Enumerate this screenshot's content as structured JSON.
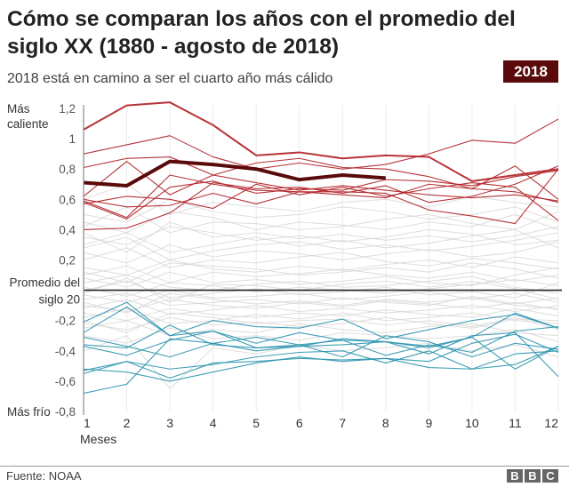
{
  "title": "Cómo se comparan los años con el promedio del siglo XX (1880 - agosto de 2018)",
  "subtitle": "2018 está en camino a ser el cuarto año más cálido",
  "badge": "2018",
  "source": "Fuente: NOAA",
  "logo": [
    "B",
    "B",
    "C"
  ],
  "chart_data": {
    "type": "line",
    "xlabel": "Meses",
    "x": [
      1,
      2,
      3,
      4,
      5,
      6,
      7,
      8,
      9,
      10,
      11,
      12
    ],
    "ylim": [
      -0.8,
      1.2
    ],
    "yticks": [
      -0.8,
      -0.6,
      -0.4,
      -0.2,
      0.2,
      0.4,
      0.6,
      0.8,
      1,
      1.2
    ],
    "ytick_labels": [
      "-0,8",
      "-0,6",
      "-0,4",
      "-0,2",
      "0,2",
      "0,4",
      "0,6",
      "0,8",
      "1",
      "1,2"
    ],
    "y_annotations": {
      "top": "Más caliente",
      "bottom": "Más frío",
      "baseline": "Promedio del siglo 20"
    },
    "grid": "vertical",
    "colors": {
      "highlight": "#5a0a0a",
      "warm": "#b3282d",
      "cold": "#2a93ae",
      "other": "#d4d4d4",
      "baseline": "#222222"
    },
    "highlight": {
      "name": "2018",
      "values": [
        0.71,
        0.69,
        0.85,
        0.83,
        0.8,
        0.73,
        0.76,
        0.74
      ]
    },
    "warm_series": [
      [
        1.06,
        1.22,
        1.24,
        1.09,
        0.89,
        0.91,
        0.87,
        0.89,
        0.88,
        0.72,
        0.76,
        0.8
      ],
      [
        0.9,
        0.96,
        1.02,
        0.88,
        0.8,
        0.84,
        0.8,
        0.83,
        0.9,
        0.99,
        0.97,
        1.13
      ],
      [
        0.81,
        0.87,
        0.88,
        0.76,
        0.71,
        0.66,
        0.69,
        0.66,
        0.63,
        0.61,
        0.63,
        0.59
      ],
      [
        0.62,
        0.85,
        0.63,
        0.76,
        0.84,
        0.87,
        0.81,
        0.8,
        0.75,
        0.67,
        0.82,
        0.6
      ],
      [
        0.58,
        0.47,
        0.68,
        0.72,
        0.64,
        0.67,
        0.66,
        0.73,
        0.72,
        0.69,
        0.75,
        0.79
      ],
      [
        0.6,
        0.55,
        0.56,
        0.64,
        0.57,
        0.65,
        0.65,
        0.64,
        0.53,
        0.49,
        0.44,
        0.8
      ],
      [
        0.57,
        0.62,
        0.6,
        0.54,
        0.7,
        0.63,
        0.68,
        0.62,
        0.67,
        0.71,
        0.68,
        0.46
      ],
      [
        0.4,
        0.41,
        0.51,
        0.71,
        0.67,
        0.68,
        0.64,
        0.69,
        0.58,
        0.62,
        0.7,
        0.82
      ],
      [
        0.59,
        0.48,
        0.76,
        0.7,
        0.66,
        0.65,
        0.63,
        0.61,
        0.7,
        0.67,
        0.65,
        0.58
      ]
    ],
    "cold_series": [
      [
        -0.21,
        -0.08,
        -0.3,
        -0.27,
        -0.35,
        -0.28,
        -0.33,
        -0.34,
        -0.37,
        -0.31,
        -0.15,
        -0.25
      ],
      [
        -0.28,
        -0.11,
        -0.3,
        -0.2,
        -0.24,
        -0.25,
        -0.19,
        -0.32,
        -0.26,
        -0.2,
        -0.16,
        -0.25
      ],
      [
        -0.31,
        -0.37,
        -0.44,
        -0.35,
        -0.31,
        -0.36,
        -0.33,
        -0.43,
        -0.36,
        -0.41,
        -0.27,
        -0.24
      ],
      [
        -0.36,
        -0.38,
        -0.23,
        -0.36,
        -0.38,
        -0.37,
        -0.36,
        -0.34,
        -0.38,
        -0.31,
        -0.52,
        -0.37
      ],
      [
        -0.37,
        -0.43,
        -0.33,
        -0.27,
        -0.38,
        -0.36,
        -0.44,
        -0.3,
        -0.34,
        -0.44,
        -0.35,
        -0.39
      ],
      [
        -0.53,
        -0.47,
        -0.52,
        -0.49,
        -0.44,
        -0.41,
        -0.4,
        -0.48,
        -0.4,
        -0.52,
        -0.49,
        -0.37
      ],
      [
        -0.55,
        -0.47,
        -0.58,
        -0.48,
        -0.47,
        -0.45,
        -0.46,
        -0.45,
        -0.51,
        -0.52,
        -0.42,
        -0.4
      ],
      [
        -0.68,
        -0.62,
        -0.32,
        -0.35,
        -0.4,
        -0.37,
        -0.32,
        -0.34,
        -0.42,
        -0.3,
        -0.28,
        -0.57
      ],
      [
        -0.52,
        -0.54,
        -0.6,
        -0.54,
        -0.48,
        -0.44,
        -0.47,
        -0.45,
        -0.47,
        -0.35,
        -0.29,
        -0.41
      ]
    ],
    "other_series": [
      [
        0.5,
        0.45,
        0.6,
        0.52,
        0.48,
        0.5,
        0.55,
        0.52,
        0.47,
        0.5,
        0.55,
        0.45
      ],
      [
        0.42,
        0.55,
        0.38,
        0.45,
        0.44,
        0.4,
        0.42,
        0.47,
        0.5,
        0.44,
        0.4,
        0.52
      ],
      [
        0.35,
        0.3,
        0.42,
        0.38,
        0.33,
        0.36,
        0.32,
        0.35,
        0.4,
        0.37,
        0.3,
        0.33
      ],
      [
        0.3,
        0.38,
        0.25,
        0.3,
        0.35,
        0.29,
        0.33,
        0.28,
        0.31,
        0.36,
        0.4,
        0.28
      ],
      [
        0.25,
        0.18,
        0.3,
        0.22,
        0.26,
        0.24,
        0.2,
        0.24,
        0.27,
        0.22,
        0.25,
        0.32
      ],
      [
        0.2,
        0.28,
        0.15,
        0.2,
        0.18,
        0.22,
        0.25,
        0.19,
        0.16,
        0.21,
        0.18,
        0.14
      ],
      [
        0.15,
        0.1,
        0.2,
        0.14,
        0.12,
        0.16,
        0.13,
        0.17,
        0.2,
        0.15,
        0.22,
        0.18
      ],
      [
        0.1,
        0.16,
        0.05,
        0.12,
        0.09,
        0.11,
        0.14,
        0.1,
        0.08,
        0.12,
        0.06,
        0.1
      ],
      [
        0.08,
        0.02,
        0.12,
        0.05,
        0.07,
        0.04,
        0.06,
        0.09,
        0.05,
        0.03,
        0.1,
        0.15
      ],
      [
        0.05,
        0.1,
        0.02,
        0.0,
        0.04,
        0.06,
        0.02,
        0.03,
        0.06,
        0.09,
        0.02,
        -0.02
      ],
      [
        0.02,
        -0.04,
        0.05,
        0.03,
        -0.01,
        0.02,
        0.0,
        -0.02,
        0.01,
        0.04,
        0.07,
        0.03
      ],
      [
        0.0,
        0.06,
        -0.05,
        -0.02,
        0.01,
        -0.03,
        -0.01,
        0.02,
        -0.03,
        -0.01,
        -0.05,
        0.05
      ],
      [
        -0.03,
        -0.08,
        0.0,
        -0.05,
        -0.04,
        -0.02,
        -0.06,
        -0.04,
        -0.01,
        -0.06,
        -0.02,
        -0.08
      ],
      [
        -0.06,
        -0.02,
        -0.1,
        -0.08,
        -0.06,
        -0.09,
        -0.05,
        -0.08,
        -0.1,
        -0.04,
        -0.09,
        -0.05
      ],
      [
        -0.1,
        -0.14,
        -0.06,
        -0.1,
        -0.12,
        -0.08,
        -0.11,
        -0.07,
        -0.09,
        -0.12,
        -0.08,
        -0.13
      ],
      [
        -0.12,
        -0.06,
        -0.16,
        -0.13,
        -0.1,
        -0.14,
        -0.12,
        -0.15,
        -0.13,
        -0.1,
        -0.14,
        -0.1
      ],
      [
        -0.15,
        -0.2,
        -0.12,
        -0.16,
        -0.18,
        -0.15,
        -0.17,
        -0.13,
        -0.16,
        -0.18,
        -0.12,
        -0.17
      ],
      [
        -0.18,
        -0.12,
        -0.22,
        -0.2,
        -0.16,
        -0.19,
        -0.15,
        -0.2,
        -0.18,
        -0.15,
        -0.2,
        -0.22
      ],
      [
        -0.22,
        -0.26,
        -0.18,
        -0.23,
        -0.21,
        -0.24,
        -0.22,
        -0.18,
        -0.22,
        -0.25,
        -0.19,
        -0.2
      ],
      [
        -0.25,
        -0.2,
        -0.3,
        -0.26,
        -0.28,
        -0.22,
        -0.26,
        -0.28,
        -0.24,
        -0.22,
        -0.28,
        -0.3
      ],
      [
        -0.3,
        -0.35,
        -0.25,
        -0.32,
        -0.3,
        -0.33,
        -0.28,
        -0.3,
        -0.32,
        -0.3,
        -0.26,
        -0.34
      ],
      [
        -0.4,
        -0.3,
        -0.65,
        -0.38,
        -0.42,
        -0.36,
        -0.4,
        -0.38,
        -0.35,
        -0.4,
        -0.36,
        -0.44
      ],
      [
        0.6,
        0.7,
        0.5,
        0.58,
        0.55,
        0.52,
        0.58,
        0.6,
        0.55,
        0.62,
        0.58,
        0.55
      ],
      [
        0.45,
        0.38,
        0.52,
        0.48,
        0.4,
        0.45,
        0.43,
        0.4,
        0.45,
        0.42,
        0.5,
        0.4
      ],
      [
        0.28,
        0.35,
        0.2,
        0.26,
        0.3,
        0.32,
        0.27,
        0.3,
        0.26,
        0.29,
        0.33,
        0.38
      ],
      [
        0.12,
        0.05,
        0.18,
        0.16,
        0.14,
        0.1,
        0.12,
        0.15,
        0.12,
        0.18,
        0.14,
        0.08
      ],
      [
        -0.08,
        -0.15,
        -0.02,
        -0.06,
        -0.09,
        -0.07,
        -0.1,
        -0.06,
        -0.08,
        -0.05,
        -0.1,
        -0.12
      ],
      [
        -0.2,
        -0.28,
        -0.15,
        -0.18,
        -0.22,
        -0.2,
        -0.19,
        -0.23,
        -0.2,
        -0.24,
        -0.18,
        -0.26
      ],
      [
        0.38,
        0.25,
        0.45,
        0.35,
        0.38,
        0.34,
        0.37,
        0.33,
        0.36,
        0.32,
        0.36,
        0.42
      ],
      [
        -0.02,
        0.08,
        -0.08,
        0.04,
        0.03,
        0.0,
        0.04,
        0.06,
        0.02,
        0.06,
        0.01,
        -0.06
      ]
    ]
  }
}
